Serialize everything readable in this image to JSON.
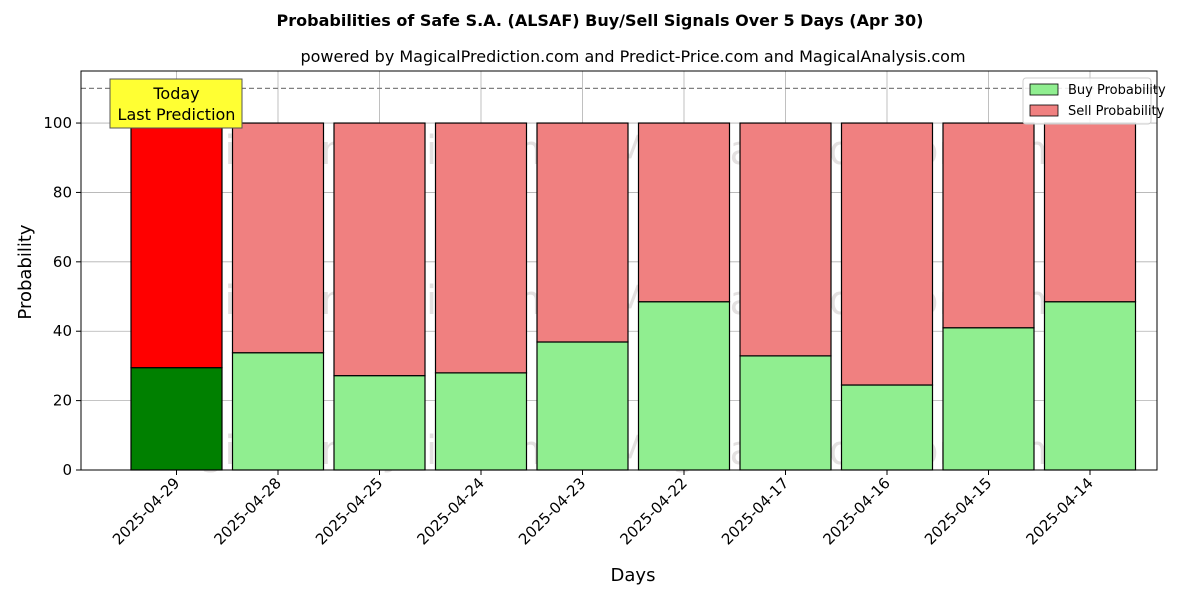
{
  "chart_data": {
    "type": "bar",
    "stacked": true,
    "title": "Probabilities of Safe S.A. (ALSAF) Buy/Sell Signals Over 5 Days (Apr 30)",
    "subtitle": "powered by MagicalPrediction.com and Predict-Price.com and MagicalAnalysis.com",
    "xlabel": "Days",
    "ylabel": "Probability",
    "ylim": [
      0,
      115
    ],
    "yticks": [
      0,
      20,
      40,
      60,
      80,
      100
    ],
    "reference_line": 110,
    "grid": true,
    "legend_position": "top-right",
    "categories": [
      "2025-04-29",
      "2025-04-28",
      "2025-04-25",
      "2025-04-24",
      "2025-04-23",
      "2025-04-22",
      "2025-04-17",
      "2025-04-16",
      "2025-04-15",
      "2025-04-14"
    ],
    "series": [
      {
        "name": "Buy Probability",
        "color": "#90ee90",
        "highlight_color": "#008000",
        "values": [
          29.5,
          33.8,
          27.2,
          28.0,
          36.9,
          48.5,
          32.9,
          24.5,
          41.0,
          48.5
        ]
      },
      {
        "name": "Sell Probability",
        "color": "#f08080",
        "highlight_color": "#ff0000",
        "values": [
          70.5,
          66.2,
          72.8,
          72.0,
          63.1,
          51.5,
          67.1,
          75.5,
          59.0,
          51.5
        ]
      }
    ],
    "annotation": {
      "lines": [
        "Today",
        "Last Prediction"
      ],
      "category_index": 0,
      "box_color": "#ffff33"
    },
    "watermarks": [
      "MagicalAnalysis.com",
      "MagicalPrediction.com"
    ]
  }
}
